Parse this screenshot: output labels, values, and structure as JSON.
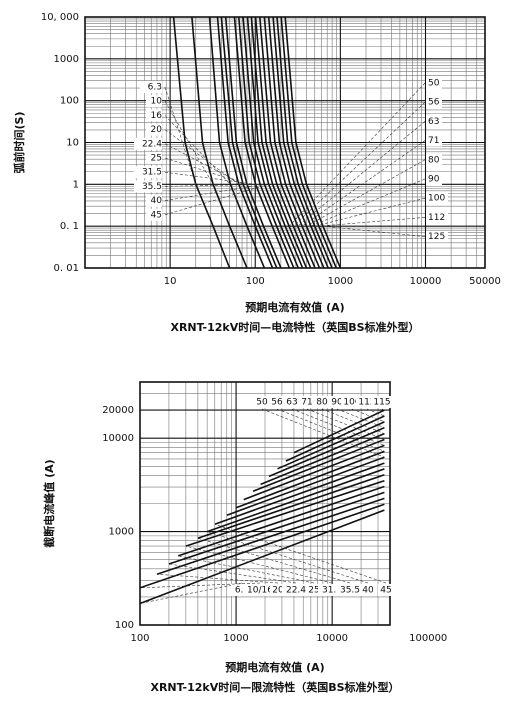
{
  "chart_data": [
    {
      "type": "line",
      "title": "XRNT-12kV时间—电流特性（英国BS标准外型）",
      "x_label": "预期电流有效值 (A)",
      "y_label": "弧前时间(S)",
      "log_x": true,
      "log_y": true,
      "grid": true,
      "color": "#111111",
      "xlim": [
        1,
        50000
      ],
      "ylim": [
        0.01,
        10000
      ],
      "xticks": [
        10,
        100,
        1000,
        10000,
        50000
      ],
      "yticks": [
        {
          "value": 10000,
          "label": "10, 000"
        },
        1000,
        100,
        10,
        1,
        {
          "value": 0.1,
          "label": "0. 1"
        },
        {
          "value": 0.01,
          "label": "0. 01"
        }
      ],
      "series": [
        {
          "name": "6.3",
          "x": [
            11,
            15,
            20,
            32,
            50
          ],
          "values": [
            10000,
            10,
            1,
            0.1,
            0.01
          ]
        },
        {
          "name": "10",
          "x": [
            18,
            24,
            32,
            50,
            80
          ],
          "values": [
            10000,
            10,
            1,
            0.1,
            0.01
          ]
        },
        {
          "name": "16",
          "x": [
            29,
            38,
            51,
            80,
            128
          ],
          "values": [
            10000,
            10,
            1,
            0.1,
            0.01
          ]
        },
        {
          "name": "20",
          "x": [
            36,
            48,
            64,
            100,
            160
          ],
          "values": [
            10000,
            10,
            1,
            0.1,
            0.01
          ]
        },
        {
          "name": "22.4",
          "x": [
            40,
            54,
            72,
            112,
            179
          ],
          "values": [
            10000,
            10,
            1,
            0.1,
            0.01
          ]
        },
        {
          "name": "25",
          "x": [
            45,
            60,
            80,
            125,
            200
          ],
          "values": [
            10000,
            10,
            1,
            0.1,
            0.01
          ]
        },
        {
          "name": "31.5",
          "x": [
            57,
            76,
            101,
            158,
            252
          ],
          "values": [
            10000,
            10,
            1,
            0.1,
            0.01
          ]
        },
        {
          "name": "35.5",
          "x": [
            64,
            85,
            114,
            178,
            284
          ],
          "values": [
            10000,
            10,
            1,
            0.1,
            0.01
          ]
        },
        {
          "name": "40",
          "x": [
            72,
            96,
            128,
            200,
            320
          ],
          "values": [
            10000,
            10,
            1,
            0.1,
            0.01
          ]
        },
        {
          "name": "45",
          "x": [
            81,
            108,
            144,
            225,
            360
          ],
          "values": [
            10000,
            10,
            1,
            0.1,
            0.01
          ]
        },
        {
          "name": "50",
          "x": [
            90,
            120,
            160,
            250,
            400
          ],
          "values": [
            10000,
            10,
            1,
            0.1,
            0.01
          ]
        },
        {
          "name": "56",
          "x": [
            101,
            134,
            179,
            280,
            448
          ],
          "values": [
            10000,
            10,
            1,
            0.1,
            0.01
          ]
        },
        {
          "name": "63",
          "x": [
            113,
            151,
            202,
            315,
            504
          ],
          "values": [
            10000,
            10,
            1,
            0.1,
            0.01
          ]
        },
        {
          "name": "71",
          "x": [
            128,
            170,
            227,
            355,
            568
          ],
          "values": [
            10000,
            10,
            1,
            0.1,
            0.01
          ]
        },
        {
          "name": "80",
          "x": [
            144,
            192,
            256,
            400,
            640
          ],
          "values": [
            10000,
            10,
            1,
            0.1,
            0.01
          ]
        },
        {
          "name": "90",
          "x": [
            162,
            216,
            288,
            450,
            720
          ],
          "values": [
            10000,
            10,
            1,
            0.1,
            0.01
          ]
        },
        {
          "name": "100",
          "x": [
            180,
            240,
            320,
            500,
            800
          ],
          "values": [
            10000,
            10,
            1,
            0.1,
            0.01
          ]
        },
        {
          "name": "112",
          "x": [
            202,
            269,
            358,
            560,
            896
          ],
          "values": [
            10000,
            10,
            1,
            0.1,
            0.01
          ]
        },
        {
          "name": "125",
          "x": [
            225,
            300,
            400,
            625,
            1000
          ],
          "values": [
            10000,
            10,
            1,
            0.1,
            0.01
          ]
        }
      ]
    },
    {
      "type": "line",
      "title": "XRNT-12kV时间—限流特性（英国BS标准外型）",
      "x_label": "预期电流有效值 (A)",
      "y_label": "截断电流峰值 (A)",
      "log_x": true,
      "log_y": true,
      "grid": true,
      "color": "#111111",
      "xlim": [
        100,
        40000
      ],
      "ylim": [
        100,
        40000
      ],
      "xticks": [
        100,
        1000,
        10000,
        100000
      ],
      "yticks": [
        20000,
        10000,
        1000,
        100
      ],
      "series": [
        {
          "name": "6.3",
          "x": [
            100,
            35000
          ],
          "values": [
            170,
            1700
          ]
        },
        {
          "name": "10/16",
          "x": [
            100,
            35000
          ],
          "values": [
            250,
            1960
          ]
        },
        {
          "name": "20",
          "x": [
            150,
            35000
          ],
          "values": [
            350,
            2270
          ]
        },
        {
          "name": "22.4",
          "x": [
            200,
            35000
          ],
          "values": [
            450,
            2630
          ]
        },
        {
          "name": "25",
          "x": [
            250,
            35000
          ],
          "values": [
            550,
            3040
          ]
        },
        {
          "name": "31.5",
          "x": [
            300,
            35000
          ],
          "values": [
            700,
            3510
          ]
        },
        {
          "name": "35.5",
          "x": [
            400,
            35000
          ],
          "values": [
            850,
            4060
          ]
        },
        {
          "name": "40",
          "x": [
            500,
            35000
          ],
          "values": [
            1000,
            4690
          ]
        },
        {
          "name": "45",
          "x": [
            600,
            35000
          ],
          "values": [
            1200,
            5420
          ]
        },
        {
          "name": "50",
          "x": [
            800,
            35000
          ],
          "values": [
            1500,
            6270
          ]
        },
        {
          "name": "56",
          "x": [
            1000,
            35000
          ],
          "values": [
            1800,
            7250
          ]
        },
        {
          "name": "63",
          "x": [
            1200,
            35000
          ],
          "values": [
            2200,
            8380
          ]
        },
        {
          "name": "71",
          "x": [
            1500,
            35000
          ],
          "values": [
            2700,
            9690
          ]
        },
        {
          "name": "80",
          "x": [
            1800,
            35000
          ],
          "values": [
            3200,
            11200
          ]
        },
        {
          "name": "90",
          "x": [
            2200,
            35000
          ],
          "values": [
            3900,
            12950
          ]
        },
        {
          "name": "100",
          "x": [
            2700,
            35000
          ],
          "values": [
            4700,
            14970
          ]
        },
        {
          "name": "112",
          "x": [
            3300,
            35000
          ],
          "values": [
            5700,
            17300
          ]
        },
        {
          "name": "115",
          "x": [
            4000,
            35000
          ],
          "values": [
            7000,
            20000
          ]
        }
      ]
    }
  ]
}
